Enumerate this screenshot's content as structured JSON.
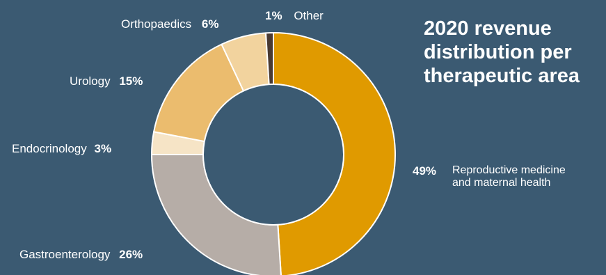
{
  "chart_data": {
    "type": "pie",
    "subtype": "donut",
    "title_lines": [
      "2020 revenue",
      "distribution per",
      "therapeutic area"
    ],
    "slices": [
      {
        "name": "Reproductive medicine and maternal health",
        "label_lines": [
          "Reproductive medicine",
          "and maternal health"
        ],
        "value": 49,
        "value_label": "49%",
        "color": "#e09a00"
      },
      {
        "name": "Gastroenterology",
        "value": 26,
        "value_label": "26%",
        "color": "#b6ada7"
      },
      {
        "name": "Endocrinology",
        "value": 3,
        "value_label": "3%",
        "color": "#f6e4c6"
      },
      {
        "name": "Urology",
        "value": 15,
        "value_label": "15%",
        "color": "#ebbc6e"
      },
      {
        "name": "Orthopaedics",
        "value": 6,
        "value_label": "6%",
        "color": "#f2d39e"
      },
      {
        "name": "Other",
        "value": 1,
        "value_label": "1%",
        "color": "#4a3a32"
      }
    ],
    "background": "#3b5a72",
    "separator_color": "#ffffff"
  }
}
